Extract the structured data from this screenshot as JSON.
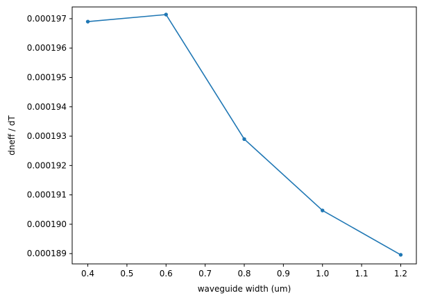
{
  "chart_data": {
    "type": "line",
    "title": "",
    "xlabel": "waveguide width (um)",
    "ylabel": "dneff / dT",
    "xlim": [
      0.36,
      1.24
    ],
    "ylim": [
      0.00018865,
      0.0001974
    ],
    "x_ticks": [
      0.4,
      0.5,
      0.6,
      0.7,
      0.8,
      0.9,
      1.0,
      1.1,
      1.2
    ],
    "x_tick_labels": [
      "0.4",
      "0.5",
      "0.6",
      "0.7",
      "0.8",
      "0.9",
      "1.0",
      "1.1",
      "1.2"
    ],
    "y_ticks": [
      0.000189,
      0.00019,
      0.000191,
      0.000192,
      0.000193,
      0.000194,
      0.000195,
      0.000196,
      0.000197
    ],
    "y_tick_labels": [
      "0.000189",
      "0.000190",
      "0.000191",
      "0.000192",
      "0.000193",
      "0.000194",
      "0.000195",
      "0.000196",
      "0.000197"
    ],
    "grid": false,
    "series": [
      {
        "color": "#1f77b4",
        "marker": "circle",
        "x": [
          0.4,
          0.6,
          0.8,
          1.0,
          1.2
        ],
        "y": [
          0.0001969,
          0.00019714,
          0.0001929,
          0.00019047,
          0.00018896
        ]
      }
    ]
  }
}
